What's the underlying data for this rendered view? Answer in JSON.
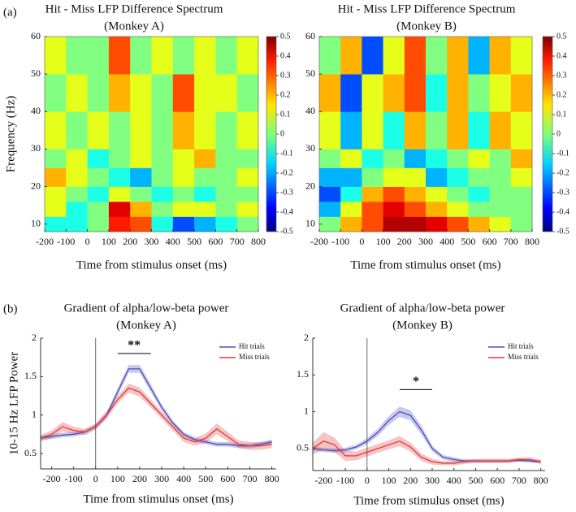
{
  "panel_labels": [
    "(a)",
    "(b)"
  ],
  "chart_data": [
    {
      "type": "heatmap",
      "title": "Hit - Miss LFP Difference Spectrum",
      "subtitle": "(Monkey A)",
      "x_label": "Time from stimulus onset (ms)",
      "y_label": "Frequency (Hz)",
      "x_bins": [
        -200,
        -100,
        0,
        100,
        200,
        300,
        400,
        500,
        600,
        700,
        800
      ],
      "y_bins": [
        8,
        12,
        16,
        20,
        25,
        30,
        40,
        50,
        60
      ],
      "values": [
        [
          -0.1,
          -0.1,
          0,
          0.35,
          0.3,
          -0.1,
          -0.3,
          -0.2,
          -0.1,
          0
        ],
        [
          0.1,
          -0.1,
          0,
          0.4,
          0.2,
          0,
          0.1,
          0.1,
          0,
          0.1
        ],
        [
          0.1,
          0,
          -0.1,
          0.1,
          0,
          -0.1,
          0,
          -0.1,
          0,
          0
        ],
        [
          0.2,
          0.1,
          0,
          -0.1,
          -0.2,
          0,
          0.1,
          0,
          0,
          0.1
        ],
        [
          0,
          0.1,
          -0.1,
          0,
          0.1,
          0,
          0.1,
          0.2,
          0,
          0
        ],
        [
          0.1,
          0,
          0.1,
          0,
          0.1,
          0,
          0.2,
          0.1,
          0,
          0.1
        ],
        [
          0,
          0.1,
          0,
          0.2,
          0.1,
          0,
          0.3,
          0.1,
          0.1,
          0
        ],
        [
          0.1,
          0,
          0,
          0.3,
          0,
          0.1,
          0,
          0.1,
          0,
          0.1
        ]
      ],
      "xlim": [
        -200,
        800
      ],
      "xticks": [
        -200,
        -100,
        0,
        100,
        200,
        300,
        400,
        500,
        600,
        700,
        800
      ],
      "ylim": [
        8,
        60
      ],
      "yticks": [
        10,
        20,
        30,
        40,
        50,
        60
      ],
      "colormap": "jet",
      "clim": [
        -0.5,
        0.5
      ],
      "cticks": [
        0.5,
        0.4,
        0.3,
        0.2,
        0.1,
        0,
        -0.1,
        -0.2,
        -0.3,
        -0.4,
        -0.5
      ]
    },
    {
      "type": "heatmap",
      "title": "Hit - Miss LFP Difference Spectrum",
      "subtitle": "(Monkey B)",
      "x_label": "Time from stimulus onset (ms)",
      "x_bins": [
        -200,
        -100,
        0,
        100,
        200,
        300,
        400,
        500,
        600,
        700,
        800
      ],
      "y_bins": [
        8,
        12,
        16,
        20,
        25,
        30,
        40,
        50,
        60
      ],
      "values": [
        [
          0,
          0.2,
          0.3,
          0.45,
          0.45,
          0.4,
          0.3,
          0.2,
          0.1,
          0
        ],
        [
          -0.2,
          0.1,
          0.3,
          0.4,
          0.3,
          0.2,
          0.1,
          0,
          0,
          0
        ],
        [
          -0.3,
          -0.1,
          0.2,
          0.3,
          0.2,
          0.1,
          0,
          -0.1,
          0,
          0
        ],
        [
          -0.2,
          -0.2,
          0,
          0.1,
          0.1,
          -0.2,
          -0.1,
          0,
          0,
          0.1
        ],
        [
          0,
          0.1,
          -0.1,
          0,
          -0.2,
          -0.1,
          0,
          0.1,
          0,
          0.2
        ],
        [
          0.1,
          -0.2,
          0.1,
          -0.1,
          0.2,
          0,
          0.2,
          -0.1,
          0.2,
          0.1
        ],
        [
          0.2,
          -0.3,
          0.1,
          0.2,
          0.3,
          -0.1,
          0.2,
          0,
          0.1,
          0.2
        ],
        [
          0,
          0.2,
          -0.3,
          0.1,
          0.3,
          0,
          0.2,
          -0.2,
          0.2,
          0.1
        ]
      ],
      "xlim": [
        -200,
        800
      ],
      "xticks": [
        -200,
        -100,
        0,
        100,
        200,
        300,
        400,
        500,
        600,
        700,
        800
      ],
      "ylim": [
        8,
        60
      ],
      "yticks": [
        10,
        20,
        30,
        40,
        50,
        60
      ],
      "colormap": "jet",
      "clim": [
        -0.5,
        0.5
      ],
      "cticks": [
        0.5,
        0.4,
        0.3,
        0.2,
        0.1,
        0,
        -0.1,
        -0.2,
        -0.3,
        -0.4,
        -0.5
      ]
    },
    {
      "type": "line",
      "title": "Gradient of alpha/low-beta power",
      "subtitle": "(Monkey A)",
      "x_label": "Time from stimulus onset (ms)",
      "y_label": "10-15 Hz LFP Power",
      "x": [
        -250,
        -200,
        -150,
        -100,
        -50,
        0,
        50,
        100,
        150,
        200,
        250,
        300,
        350,
        400,
        450,
        500,
        550,
        600,
        650,
        700,
        750,
        800
      ],
      "series": [
        {
          "name": "Hit trials",
          "color": "#4a4fc4",
          "values": [
            0.7,
            0.72,
            0.74,
            0.75,
            0.78,
            0.85,
            1.0,
            1.3,
            1.6,
            1.6,
            1.35,
            1.1,
            0.9,
            0.75,
            0.68,
            0.65,
            0.62,
            0.62,
            0.6,
            0.6,
            0.62,
            0.65
          ],
          "error": [
            0.03,
            0.03,
            0.03,
            0.03,
            0.03,
            0.03,
            0.04,
            0.05,
            0.05,
            0.05,
            0.05,
            0.04,
            0.03,
            0.03,
            0.03,
            0.03,
            0.03,
            0.03,
            0.03,
            0.03,
            0.03,
            0.03
          ]
        },
        {
          "name": "Miss trials",
          "color": "#e03a3a",
          "values": [
            0.7,
            0.75,
            0.85,
            0.8,
            0.78,
            0.85,
            1.0,
            1.2,
            1.35,
            1.3,
            1.15,
            1.0,
            0.85,
            0.7,
            0.65,
            0.7,
            0.82,
            0.72,
            0.62,
            0.6,
            0.6,
            0.62
          ],
          "error": [
            0.04,
            0.05,
            0.06,
            0.05,
            0.04,
            0.04,
            0.05,
            0.05,
            0.06,
            0.06,
            0.05,
            0.05,
            0.05,
            0.05,
            0.05,
            0.06,
            0.07,
            0.06,
            0.05,
            0.05,
            0.05,
            0.05
          ]
        }
      ],
      "xlim": [
        -250,
        820
      ],
      "xticks": [
        -200,
        -100,
        0,
        100,
        200,
        300,
        400,
        500,
        600,
        700,
        800
      ],
      "ylim": [
        0.3,
        2
      ],
      "yticks": [
        0.5,
        1,
        1.5,
        2
      ],
      "vline": 0,
      "legend": "upper right",
      "annotations": [
        {
          "text": "**",
          "x": [
            100,
            250
          ],
          "y": 1.8
        }
      ]
    },
    {
      "type": "line",
      "title": "Gradient of alpha/low-beta power",
      "subtitle": "(Monkey B)",
      "x_label": "Time from stimulus onset (ms)",
      "x": [
        -250,
        -200,
        -150,
        -100,
        -50,
        0,
        50,
        100,
        150,
        200,
        250,
        300,
        350,
        400,
        450,
        500,
        550,
        600,
        650,
        700,
        750,
        800
      ],
      "series": [
        {
          "name": "Hit trials",
          "color": "#4a4fc4",
          "values": [
            0.5,
            0.48,
            0.47,
            0.48,
            0.52,
            0.6,
            0.72,
            0.88,
            1.0,
            0.95,
            0.75,
            0.5,
            0.38,
            0.35,
            0.33,
            0.33,
            0.33,
            0.33,
            0.33,
            0.34,
            0.33,
            0.32
          ],
          "error": [
            0.03,
            0.03,
            0.03,
            0.03,
            0.03,
            0.04,
            0.05,
            0.06,
            0.07,
            0.07,
            0.06,
            0.04,
            0.03,
            0.03,
            0.02,
            0.02,
            0.02,
            0.02,
            0.02,
            0.02,
            0.02,
            0.02
          ]
        },
        {
          "name": "Miss trials",
          "color": "#e03a3a",
          "values": [
            0.5,
            0.6,
            0.55,
            0.4,
            0.4,
            0.45,
            0.5,
            0.55,
            0.6,
            0.52,
            0.38,
            0.32,
            0.3,
            0.3,
            0.32,
            0.33,
            0.33,
            0.33,
            0.33,
            0.35,
            0.35,
            0.32
          ],
          "error": [
            0.08,
            0.12,
            0.1,
            0.07,
            0.06,
            0.06,
            0.06,
            0.06,
            0.07,
            0.06,
            0.05,
            0.04,
            0.03,
            0.03,
            0.03,
            0.03,
            0.03,
            0.03,
            0.03,
            0.03,
            0.03,
            0.03
          ]
        }
      ],
      "xlim": [
        -250,
        820
      ],
      "xticks": [
        -200,
        -100,
        0,
        100,
        200,
        300,
        400,
        500,
        600,
        700,
        800
      ],
      "ylim": [
        0.2,
        2
      ],
      "yticks": [
        0.5,
        1,
        1.5,
        2
      ],
      "vline": 0,
      "legend": "upper right",
      "annotations": [
        {
          "text": "*",
          "x": [
            150,
            300
          ],
          "y": 1.3
        }
      ]
    }
  ]
}
